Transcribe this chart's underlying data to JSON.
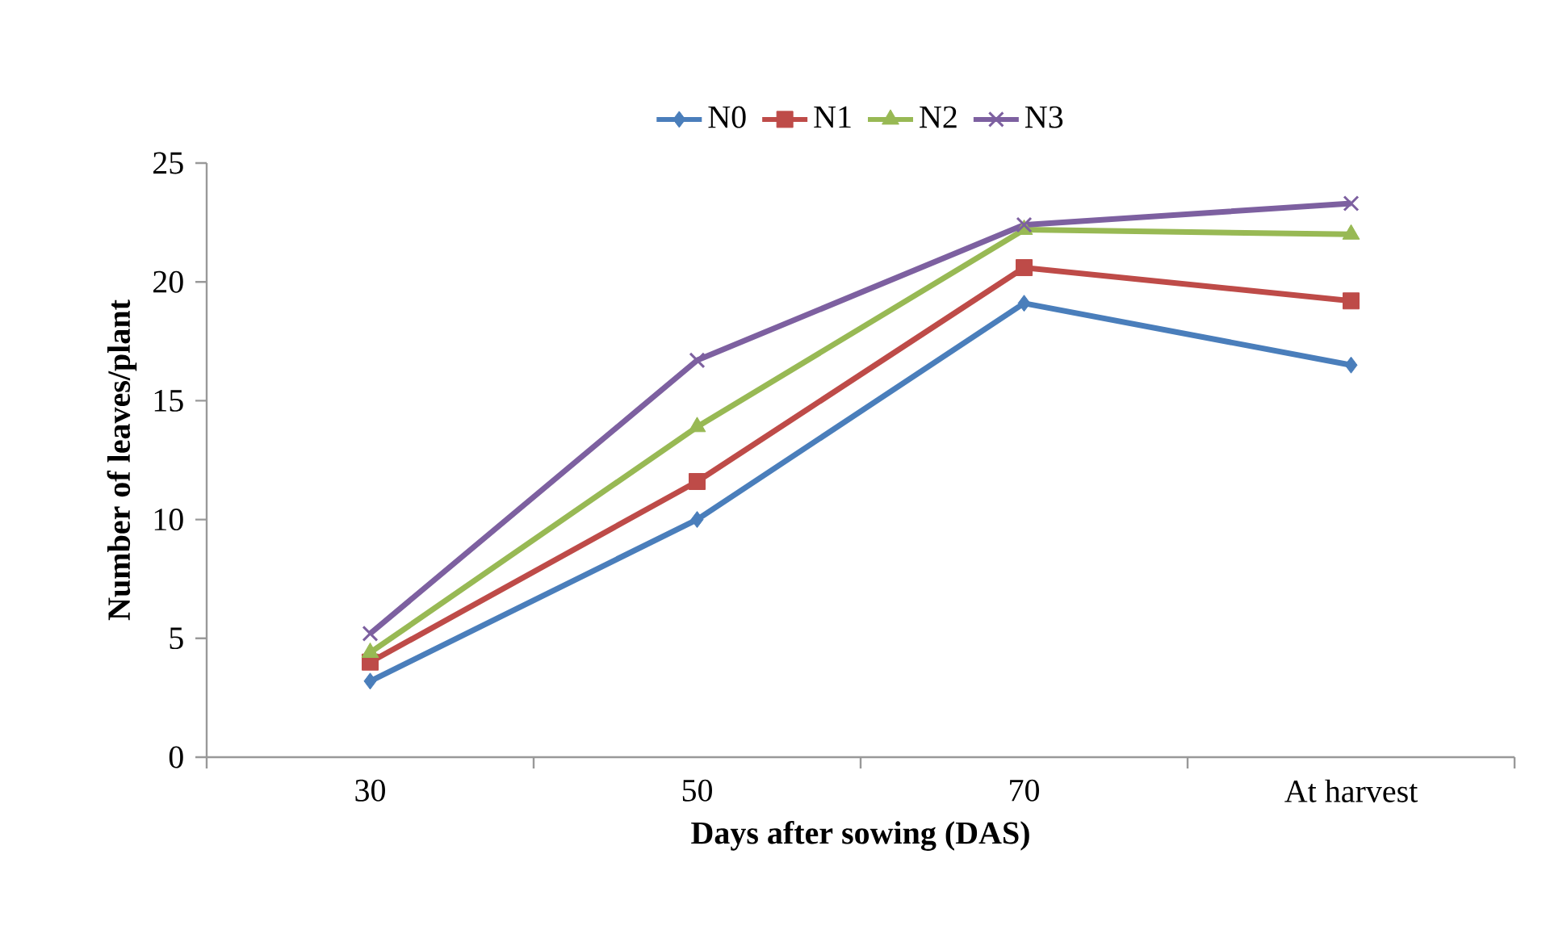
{
  "chart_data": {
    "type": "line",
    "xlabel": "Days after sowing (DAS)",
    "ylabel": "Number of leaves/plant",
    "categories": [
      "30",
      "50",
      "70",
      "At harvest"
    ],
    "ylim": [
      0,
      25
    ],
    "yticks": [
      0,
      5,
      10,
      15,
      20,
      25
    ],
    "legend": "top",
    "grid": false,
    "series": [
      {
        "name": "N0",
        "color": "#4a7ebb",
        "marker": "diamond",
        "values": [
          3.2,
          10.0,
          19.1,
          16.5
        ]
      },
      {
        "name": "N1",
        "color": "#be4b48",
        "marker": "square",
        "values": [
          4.0,
          11.6,
          20.6,
          19.2
        ]
      },
      {
        "name": "N2",
        "color": "#98b954",
        "marker": "triangle",
        "values": [
          4.4,
          13.9,
          22.2,
          22.0
        ]
      },
      {
        "name": "N3",
        "color": "#7d60a0",
        "marker": "cross",
        "values": [
          5.2,
          16.7,
          22.4,
          23.3
        ]
      }
    ]
  }
}
